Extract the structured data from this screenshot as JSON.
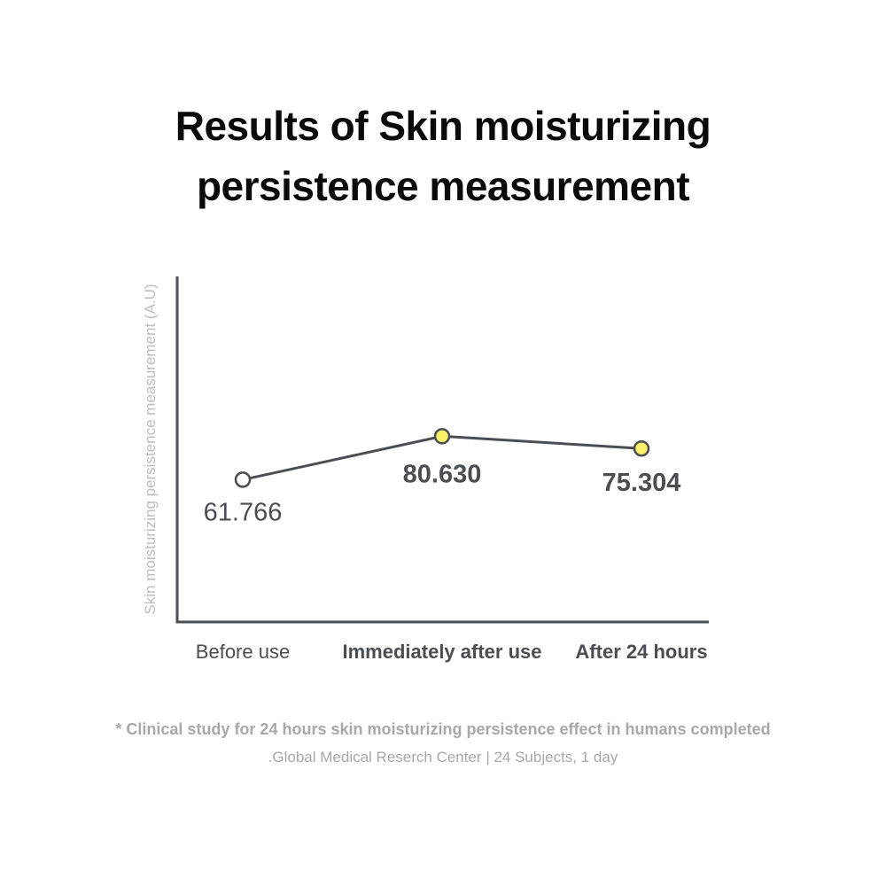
{
  "title_lines": [
    "Results of Skin moisturizing",
    "persistence measurement"
  ],
  "footnote": {
    "main": "* Clinical study for 24 hours skin moisturizing persistence effect in humans completed",
    "sub": ".Global Medical Reserch Center | 24 Subjects, 1 day"
  },
  "chart_data": {
    "type": "line",
    "title": "Results of Skin moisturizing persistence measurement",
    "xlabel": "",
    "ylabel": "Skin moisturizing persistence measurement (A.U)",
    "categories": [
      "Before use",
      "Immediately after use",
      "After 24 hours"
    ],
    "series": [
      {
        "values": [
          61.766,
          80.63,
          75.304
        ],
        "labels": [
          "61.766",
          "80.630",
          "75.304"
        ]
      }
    ],
    "ylim": [
      0,
      150
    ],
    "grid": false,
    "legend": "none",
    "colors": {
      "line": "#4a4d52",
      "axis": "#4a4d52",
      "marker_before": "#ffffff",
      "marker_after": "#fbf06a",
      "label": "#4a4d52",
      "ylabel": "#bdbdbd"
    }
  }
}
